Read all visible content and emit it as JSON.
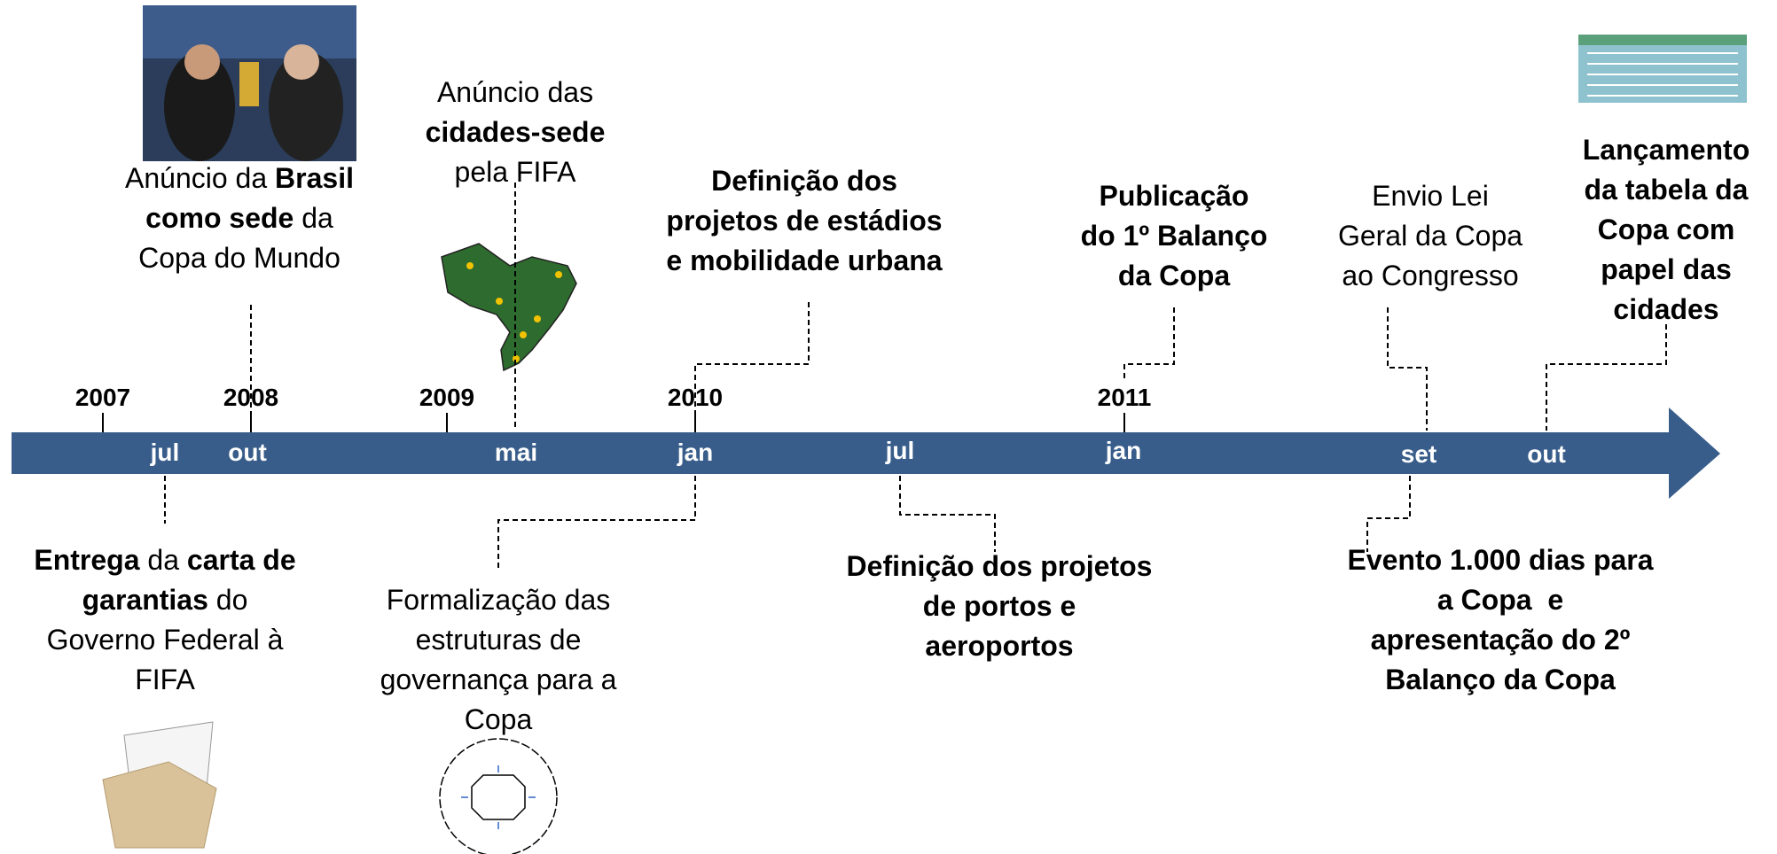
{
  "years": [
    "2007",
    "2008",
    "2009",
    "2010",
    "2011"
  ],
  "months": [
    "jul",
    "out",
    "mai",
    "jan",
    "jul",
    "jan",
    "set",
    "out"
  ],
  "events": [
    {
      "lines": [
        [
          {
            "text": "Anúncio da ",
            "bold": false
          },
          {
            "text": "Brasil",
            "bold": true
          }
        ],
        [
          {
            "text": "como sede",
            "bold": true
          },
          {
            "text": " da",
            "bold": false
          }
        ],
        [
          {
            "text": "Copa do Mundo",
            "bold": false
          }
        ]
      ]
    },
    {
      "lines": [
        [
          {
            "text": "Anúncio das",
            "bold": false
          }
        ],
        [
          {
            "text": "cidades-sede",
            "bold": true
          }
        ],
        [
          {
            "text": "pela FIFA",
            "bold": false
          }
        ]
      ]
    },
    {
      "lines": [
        [
          {
            "text": "Definição dos",
            "bold": true
          }
        ],
        [
          {
            "text": "projetos de estádios",
            "bold": true
          }
        ],
        [
          {
            "text": "e mobilidade urbana",
            "bold": true
          }
        ]
      ]
    },
    {
      "lines": [
        [
          {
            "text": "Publicação",
            "bold": true
          }
        ],
        [
          {
            "text": "do 1º Balanço",
            "bold": true
          }
        ],
        [
          {
            "text": "da Copa",
            "bold": true
          }
        ]
      ]
    },
    {
      "lines": [
        [
          {
            "text": "Envio Lei",
            "bold": false
          }
        ],
        [
          {
            "text": "Geral da Copa",
            "bold": false
          }
        ],
        [
          {
            "text": "ao Congresso",
            "bold": false
          }
        ]
      ]
    },
    {
      "lines": [
        [
          {
            "text": "Lançamento",
            "bold": true
          }
        ],
        [
          {
            "text": "da tabela da",
            "bold": true
          }
        ],
        [
          {
            "text": "Copa com",
            "bold": true
          }
        ],
        [
          {
            "text": "papel das",
            "bold": true
          }
        ],
        [
          {
            "text": "cidades",
            "bold": true
          }
        ]
      ]
    },
    {
      "lines": [
        [
          {
            "text": "Entrega",
            "bold": true
          },
          {
            "text": " da ",
            "bold": false
          },
          {
            "text": "carta de",
            "bold": true
          }
        ],
        [
          {
            "text": "garantias",
            "bold": true
          },
          {
            "text": " do",
            "bold": false
          }
        ],
        [
          {
            "text": "Governo Federal à",
            "bold": false
          }
        ],
        [
          {
            "text": "FIFA",
            "bold": false
          }
        ]
      ]
    },
    {
      "lines": [
        [
          {
            "text": "Formalização das",
            "bold": false
          }
        ],
        [
          {
            "text": "estruturas de",
            "bold": false
          }
        ],
        [
          {
            "text": "governança para a",
            "bold": false
          }
        ],
        [
          {
            "text": "Copa",
            "bold": false
          }
        ]
      ]
    },
    {
      "lines": [
        [
          {
            "text": "Definição dos projetos",
            "bold": true
          }
        ],
        [
          {
            "text": "de portos e",
            "bold": true
          }
        ],
        [
          {
            "text": "aeroportos",
            "bold": true
          }
        ]
      ]
    },
    {
      "lines": [
        [
          {
            "text": "Evento 1.000 dias para",
            "bold": true
          }
        ],
        [
          {
            "text": "a Copa  e",
            "bold": true
          }
        ],
        [
          {
            "text": "apresentação do 2º",
            "bold": true
          }
        ],
        [
          {
            "text": "Balanço da Copa",
            "bold": true
          }
        ]
      ]
    }
  ]
}
